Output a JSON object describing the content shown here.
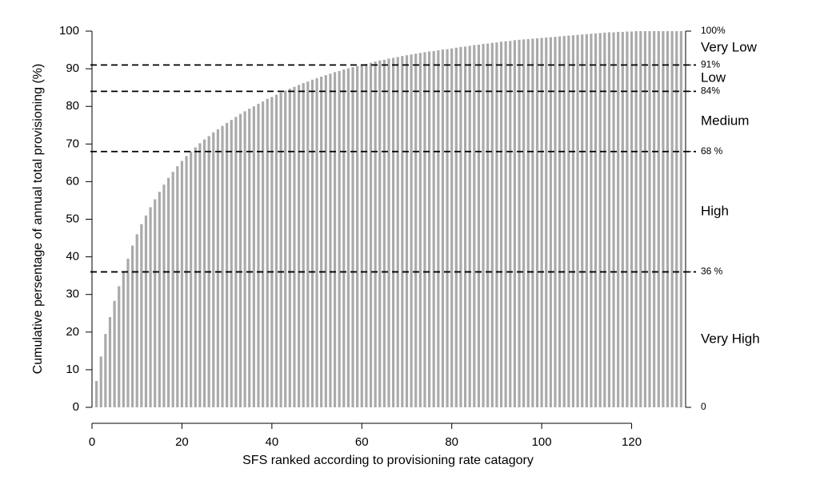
{
  "chart_data": {
    "type": "bar",
    "xlabel": "SFS ranked according to provisioning rate catagory",
    "ylabel": "Cumulative persentage of annual total provisioning (%)",
    "x": [
      1,
      2,
      3,
      4,
      5,
      6,
      7,
      8,
      9,
      10,
      11,
      12,
      13,
      14,
      15,
      16,
      17,
      18,
      19,
      20,
      21,
      22,
      23,
      24,
      25,
      26,
      27,
      28,
      29,
      30,
      31,
      32,
      33,
      34,
      35,
      36,
      37,
      38,
      39,
      40,
      41,
      42,
      43,
      44,
      45,
      46,
      47,
      48,
      49,
      50,
      51,
      52,
      53,
      54,
      55,
      56,
      57,
      58,
      59,
      60,
      61,
      62,
      63,
      64,
      65,
      66,
      67,
      68,
      69,
      70,
      71,
      72,
      73,
      74,
      75,
      76,
      77,
      78,
      79,
      80,
      81,
      82,
      83,
      84,
      85,
      86,
      87,
      88,
      89,
      90,
      91,
      92,
      93,
      94,
      95,
      96,
      97,
      98,
      99,
      100,
      101,
      102,
      103,
      104,
      105,
      106,
      107,
      108,
      109,
      110,
      111,
      112,
      113,
      114,
      115,
      116,
      117,
      118,
      119,
      120,
      121,
      122,
      123,
      124,
      125,
      126,
      127,
      128,
      129,
      130,
      131
    ],
    "values": [
      7,
      13.5,
      19.5,
      24,
      28.3,
      32.2,
      36,
      39.5,
      43,
      46,
      48.7,
      51,
      53.2,
      55.3,
      57.3,
      59.2,
      61,
      62.6,
      64.1,
      65.5,
      66.8,
      68,
      69.1,
      70.2,
      71.2,
      72.1,
      73.1,
      73.9,
      74.8,
      75.6,
      76.4,
      77.2,
      78.0,
      78.7,
      79.4,
      80.0,
      80.7,
      81.3,
      82.0,
      82.5,
      83.1,
      83.7,
      84.2,
      84.7,
      85.2,
      85.7,
      86.2,
      86.6,
      87.1,
      87.5,
      87.9,
      88.3,
      88.7,
      89.1,
      89.4,
      89.8,
      90.1,
      90.4,
      90.7,
      91.0,
      91.3,
      91.6,
      91.9,
      92.2,
      92.4,
      92.7,
      92.9,
      93.1,
      93.4,
      93.6,
      93.8,
      94.0,
      94.2,
      94.4,
      94.6,
      94.7,
      94.9,
      95.1,
      95.2,
      95.4,
      95.6,
      95.8,
      95.9,
      96.1,
      96.3,
      96.4,
      96.6,
      96.7,
      96.9,
      97.0,
      97.2,
      97.3,
      97.4,
      97.6,
      97.7,
      97.8,
      97.9,
      98.0,
      98.1,
      98.2,
      98.3,
      98.4,
      98.5,
      98.6,
      98.7,
      98.8,
      98.9,
      99.0,
      99.1,
      99.2,
      99.3,
      99.4,
      99.5,
      99.6,
      99.7,
      99.7,
      99.8,
      99.8,
      99.9,
      99.9,
      100,
      100,
      100,
      100,
      100,
      100,
      100,
      100,
      100,
      100,
      100
    ],
    "color": "#aaaaaa",
    "xlim": [
      0,
      132
    ],
    "xticks": [
      0,
      20,
      40,
      60,
      80,
      100,
      120
    ],
    "ylim": [
      0,
      100
    ],
    "yticks": [
      0,
      10,
      20,
      30,
      40,
      50,
      60,
      70,
      80,
      90,
      100
    ],
    "y2lim": [
      0,
      100
    ],
    "y2ticks": [
      {
        "value": 100,
        "label": "100%"
      },
      {
        "value": 91,
        "label": "91%"
      },
      {
        "value": 84,
        "label": "84%"
      },
      {
        "value": 68,
        "label": "68 %"
      },
      {
        "value": 36,
        "label": "36 %"
      },
      0
    ],
    "hlines": [
      91,
      84,
      68,
      36
    ],
    "regions": [
      "Very Low",
      "Low",
      "Medium",
      "High",
      "Very High"
    ]
  }
}
